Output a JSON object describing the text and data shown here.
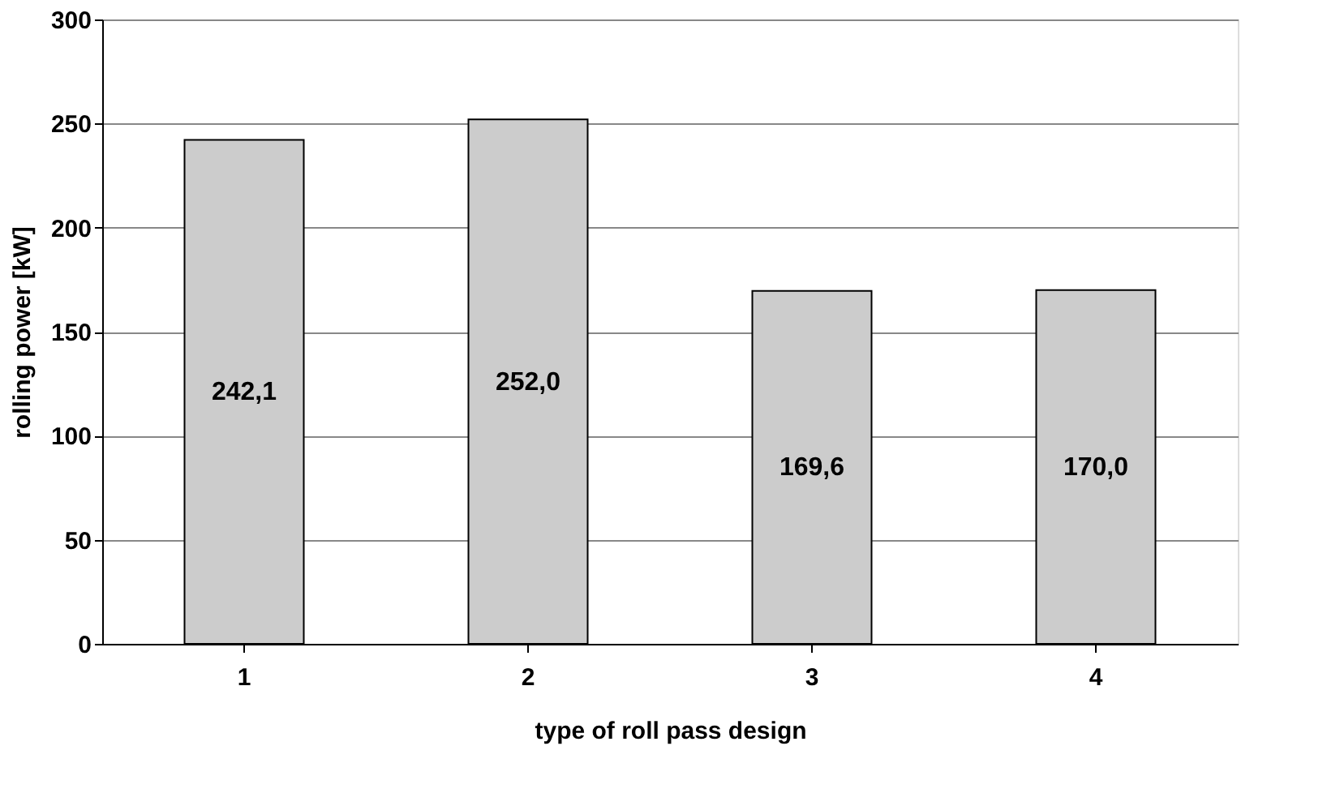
{
  "chart_data": {
    "type": "bar",
    "xlabel": "type of roll pass design",
    "ylabel": "rolling power [kW]",
    "categories": [
      "1",
      "2",
      "3",
      "4"
    ],
    "values": [
      242.1,
      252.0,
      169.6,
      170.0
    ],
    "value_labels": [
      "242,1",
      "252,0",
      "169,6",
      "170,0"
    ],
    "color": "#cccccc",
    "ylim": [
      0,
      300
    ],
    "yticks": [
      0,
      50,
      100,
      150,
      200,
      250,
      300
    ],
    "grid": "y"
  }
}
